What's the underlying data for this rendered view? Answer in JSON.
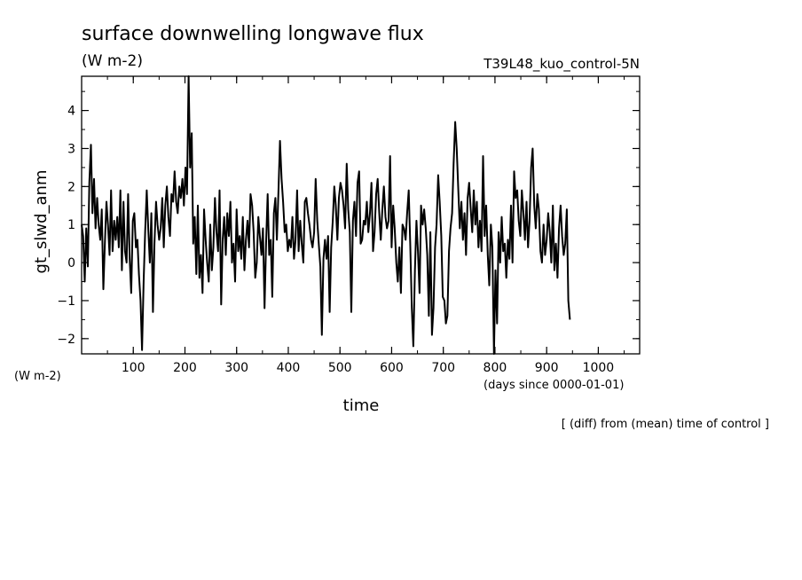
{
  "chart_data": {
    "type": "line",
    "title": "surface downwelling longwave flux",
    "units_label": "(W m-2)",
    "run_id": "T39L48_kuo_control-5N",
    "ylabel": "gt_slwd_anm",
    "yunits_label": "(W m-2)",
    "xlabel": "time",
    "xunits_label": "(days since 0000-01-01)",
    "note": "[ (diff) from (mean) time of control ]",
    "xlim": [
      0,
      1080
    ],
    "ylim": [
      -2.4,
      4.9
    ],
    "x_ticks": [
      100,
      200,
      300,
      400,
      500,
      600,
      700,
      800,
      900,
      1000
    ],
    "y_ticks": [
      -2,
      -1,
      0,
      1,
      2,
      3,
      4
    ],
    "x_minor_step": 50,
    "y_minor_step": 0.5,
    "grid": false,
    "legend": "none",
    "line_color": "#000000",
    "x_step": 3,
    "x_start": 0,
    "values": [
      1.0,
      0.7,
      -0.5,
      0.9,
      -0.1,
      2.1,
      3.1,
      1.3,
      2.2,
      0.9,
      1.7,
      1.0,
      0.6,
      1.4,
      -0.7,
      0.5,
      1.6,
      1.0,
      0.2,
      1.9,
      0.3,
      1.1,
      0.6,
      1.2,
      0.4,
      1.9,
      -0.2,
      1.6,
      0.3,
      0.0,
      1.8,
      0.1,
      -0.8,
      1.1,
      1.3,
      0.4,
      0.6,
      -0.3,
      -1.0,
      -2.3,
      -0.5,
      0.8,
      1.9,
      0.9,
      0.0,
      1.3,
      -1.3,
      0.5,
      1.6,
      1.0,
      0.6,
      0.9,
      1.7,
      0.4,
      1.5,
      2.0,
      1.2,
      0.7,
      1.8,
      1.6,
      2.4,
      1.6,
      1.3,
      2.0,
      1.7,
      2.2,
      1.5,
      2.5,
      1.8,
      4.9,
      2.5,
      3.4,
      0.5,
      1.2,
      -0.3,
      1.5,
      -0.4,
      0.2,
      -0.8,
      1.4,
      0.6,
      0.0,
      -0.5,
      1.0,
      -0.2,
      0.4,
      1.7,
      0.8,
      0.3,
      1.9,
      -1.1,
      0.6,
      1.2,
      0.2,
      1.3,
      0.7,
      1.6,
      0.0,
      0.5,
      -0.5,
      1.4,
      0.3,
      0.7,
      0.1,
      1.2,
      -0.2,
      0.6,
      1.1,
      0.4,
      1.8,
      1.5,
      0.8,
      -0.4,
      0.0,
      1.2,
      0.7,
      0.2,
      0.9,
      -1.2,
      0.5,
      1.8,
      0.2,
      0.6,
      -0.9,
      1.3,
      1.7,
      0.6,
      1.9,
      3.2,
      2.2,
      1.6,
      0.8,
      1.0,
      0.3,
      0.6,
      0.4,
      1.2,
      0.1,
      0.6,
      1.9,
      0.3,
      1.1,
      0.5,
      0.0,
      1.6,
      1.7,
      1.3,
      1.0,
      0.6,
      0.4,
      0.8,
      2.2,
      1.1,
      0.5,
      -0.1,
      -1.9,
      0.1,
      0.6,
      0.1,
      0.7,
      -1.3,
      0.4,
      1.1,
      2.0,
      1.5,
      0.6,
      1.7,
      2.1,
      1.9,
      1.5,
      0.9,
      2.6,
      1.4,
      0.8,
      -1.3,
      1.1,
      1.6,
      0.7,
      2.1,
      2.4,
      0.5,
      0.6,
      1.1,
      1.0,
      1.6,
      0.8,
      1.3,
      2.1,
      0.3,
      0.8,
      1.8,
      2.2,
      1.3,
      0.6,
      1.4,
      2.0,
      1.2,
      0.9,
      1.1,
      2.8,
      0.4,
      1.5,
      0.9,
      0.0,
      -0.5,
      0.4,
      -0.8,
      1.0,
      0.9,
      0.6,
      1.3,
      1.9,
      0.5,
      -1.2,
      -2.2,
      -0.2,
      1.1,
      0.3,
      -0.8,
      1.5,
      1.0,
      1.4,
      0.9,
      0.2,
      -1.4,
      0.8,
      -1.9,
      -1.2,
      0.4,
      1.0,
      2.3,
      1.6,
      0.7,
      -0.9,
      -1.0,
      -1.6,
      -1.4,
      0.3,
      0.9,
      1.3,
      2.6,
      3.7,
      3.0,
      1.9,
      0.9,
      1.6,
      0.6,
      1.3,
      0.2,
      1.7,
      2.1,
      1.4,
      0.8,
      1.9,
      1.0,
      1.6,
      0.4,
      1.1,
      0.3,
      2.8,
      0.7,
      1.5,
      0.2,
      -0.6,
      1.0,
      0.4,
      -2.4,
      -0.2,
      -1.6,
      0.8,
      0.0,
      1.2,
      0.3,
      0.5,
      -0.4,
      0.6,
      0.1,
      1.5,
      0.0,
      2.4,
      1.7,
      1.9,
      1.1,
      0.7,
      1.9,
      1.3,
      0.6,
      1.6,
      0.4,
      1.1,
      2.5,
      3.0,
      1.5,
      0.9,
      1.8,
      1.4,
      0.3,
      0.0,
      1.0,
      0.2,
      0.6,
      1.3,
      0.8,
      0.0,
      1.5,
      -0.2,
      0.5,
      -0.4,
      0.9,
      1.5,
      0.7,
      0.2,
      0.5,
      1.4,
      -1.0,
      -1.5
    ]
  }
}
